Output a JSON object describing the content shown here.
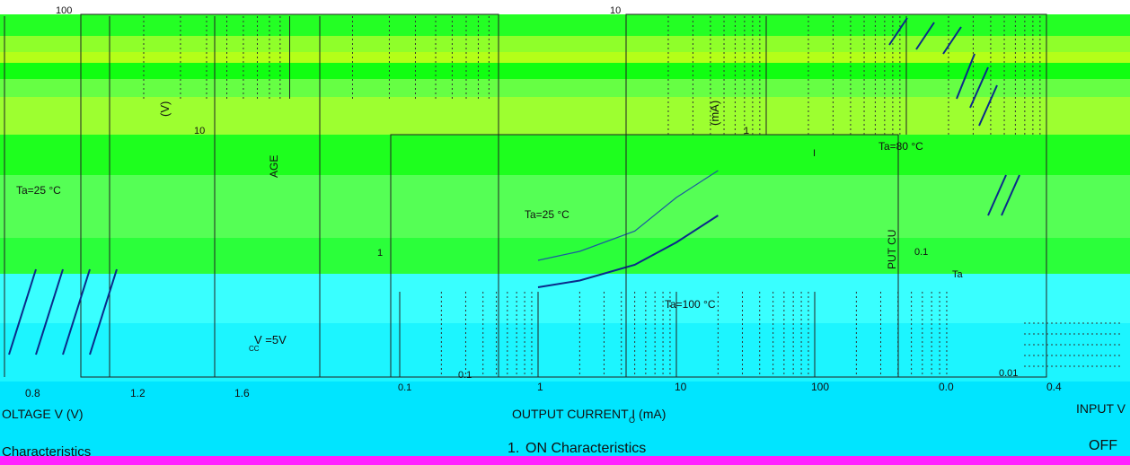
{
  "page": {
    "bands": [
      {
        "color": "#24ff24"
      },
      {
        "color": "#8fff2a"
      },
      {
        "color": "#b4ff18"
      },
      {
        "color": "#11ff11"
      },
      {
        "color": "#66ff44"
      },
      {
        "color": "#9dff30"
      },
      {
        "color": "#1eff1e"
      },
      {
        "color": "#55ff55"
      },
      {
        "color": "#2bff3a"
      },
      {
        "color": "#39ffff"
      },
      {
        "color": "#1cf5ff"
      },
      {
        "color": "#00e5ff"
      },
      {
        "color": "#ff22ff"
      }
    ]
  },
  "chart_data": [
    {
      "type": "line",
      "title": "Characteristics",
      "xlabel": "OLTAGE V  (V)",
      "ylabel": "(V)",
      "x_ticks": [
        "0.8",
        "1.2",
        "1.6"
      ],
      "y_ticks": [
        "100",
        "10"
      ],
      "annotations": [
        "Ta=25 °C",
        "V =5V",
        "CC"
      ]
    },
    {
      "type": "line",
      "title": "ON Characteristics",
      "title_prefix": "1.",
      "xlabel": "OUTPUT CURRENT  I  (mA)",
      "xlabel_sub": "O",
      "ylabel": "AGE",
      "x_scale": "log",
      "x_ticks": [
        "0.1",
        "1",
        "10",
        "100"
      ],
      "y_ticks": [
        "1",
        "0.1"
      ],
      "annotations": [
        "Ta=25 °C",
        "Ta=100 °C"
      ],
      "series": [
        {
          "x": [
            1,
            2,
            5,
            10,
            20
          ],
          "y": [
            0.52,
            0.56,
            0.65,
            0.8,
            0.92
          ]
        },
        {
          "x": [
            1,
            2,
            5,
            10,
            20
          ],
          "y": [
            0.4,
            0.43,
            0.5,
            0.6,
            0.72
          ]
        }
      ]
    },
    {
      "type": "line",
      "title": "OFF",
      "xlabel": "INPUT V",
      "ylabel": "(mA)",
      "ylabel2": "PUT CU",
      "x_ticks": [
        "0.0",
        "0.4"
      ],
      "y_ticks": [
        "10",
        "1",
        "0.1",
        "0.01"
      ],
      "annotations": [
        "Ta=80 °C",
        "Ta",
        "I"
      ]
    }
  ]
}
